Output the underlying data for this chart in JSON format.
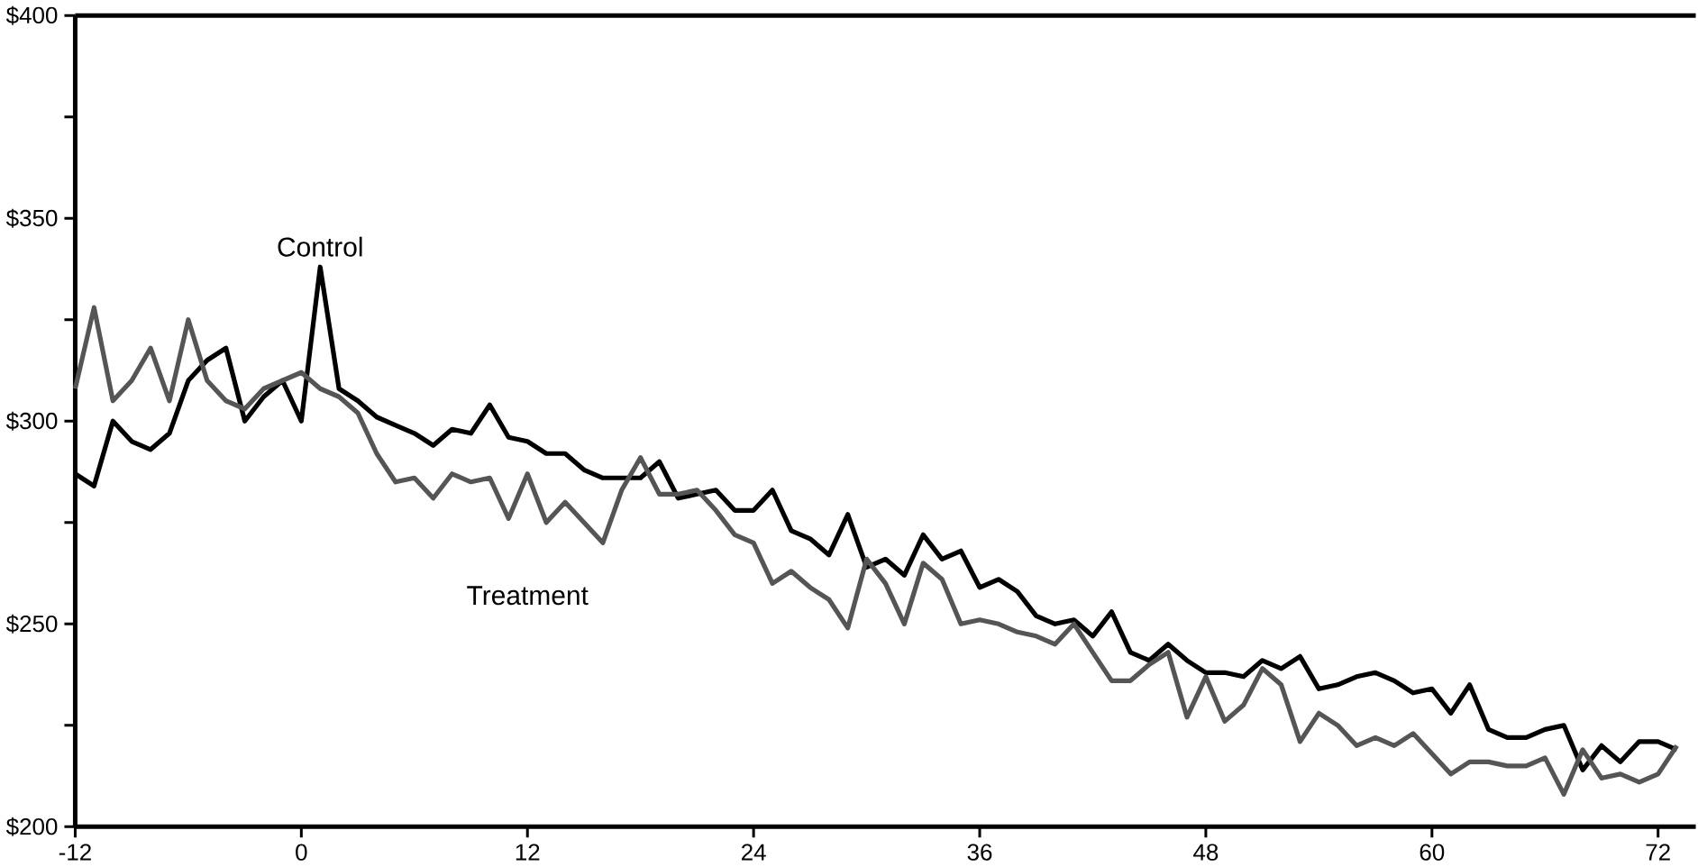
{
  "chart_data": {
    "type": "line",
    "x": [
      -12,
      -11,
      -10,
      -9,
      -8,
      -7,
      -6,
      -5,
      -4,
      -3,
      -2,
      -1,
      0,
      1,
      2,
      3,
      4,
      5,
      6,
      7,
      8,
      9,
      10,
      11,
      12,
      13,
      14,
      15,
      16,
      17,
      18,
      19,
      20,
      21,
      22,
      23,
      24,
      25,
      26,
      27,
      28,
      29,
      30,
      31,
      32,
      33,
      34,
      35,
      36,
      37,
      38,
      39,
      40,
      41,
      42,
      43,
      44,
      45,
      46,
      47,
      48,
      49,
      50,
      51,
      52,
      53,
      54,
      55,
      56,
      57,
      58,
      59,
      60,
      61,
      62,
      63,
      64,
      65,
      66,
      67,
      68,
      69,
      70,
      71,
      72,
      73
    ],
    "series": [
      {
        "name": "Control",
        "color": "#000000",
        "values": [
          287,
          284,
          300,
          295,
          293,
          297,
          310,
          315,
          318,
          300,
          306,
          310,
          300,
          338,
          308,
          305,
          301,
          299,
          297,
          294,
          298,
          297,
          304,
          296,
          295,
          292,
          292,
          288,
          286,
          286,
          286,
          290,
          281,
          282,
          283,
          278,
          278,
          283,
          273,
          271,
          267,
          277,
          264,
          266,
          262,
          272,
          266,
          268,
          259,
          261,
          258,
          252,
          250,
          251,
          247,
          253,
          243,
          241,
          245,
          241,
          238,
          238,
          237,
          241,
          239,
          242,
          234,
          235,
          237,
          238,
          236,
          233,
          234,
          228,
          235,
          224,
          222,
          222,
          224,
          225,
          214,
          220,
          216,
          221,
          221,
          219
        ]
      },
      {
        "name": "Treatment",
        "color": "#555555",
        "values": [
          308,
          328,
          305,
          310,
          318,
          305,
          325,
          310,
          305,
          303,
          308,
          310,
          312,
          308,
          306,
          302,
          292,
          285,
          286,
          281,
          287,
          285,
          286,
          276,
          287,
          275,
          280,
          275,
          270,
          283,
          291,
          282,
          282,
          283,
          278,
          272,
          270,
          260,
          263,
          259,
          256,
          249,
          266,
          260,
          250,
          265,
          261,
          250,
          251,
          250,
          248,
          247,
          245,
          250,
          243,
          236,
          236,
          240,
          243,
          227,
          237,
          226,
          230,
          239,
          235,
          221,
          228,
          225,
          220,
          222,
          220,
          223,
          218,
          213,
          216,
          216,
          215,
          215,
          217,
          208,
          219,
          212,
          213,
          211,
          213,
          220
        ]
      }
    ],
    "xlim": [
      -12,
      74
    ],
    "ylim": [
      200,
      400
    ],
    "xticks": [
      -12,
      0,
      12,
      24,
      36,
      48,
      60,
      72
    ],
    "yticks": [
      {
        "value": 200,
        "label": "$200"
      },
      {
        "value": 225,
        "label": null
      },
      {
        "value": 250,
        "label": "$250"
      },
      {
        "value": 275,
        "label": null
      },
      {
        "value": 300,
        "label": "$300"
      },
      {
        "value": 325,
        "label": null
      },
      {
        "value": 350,
        "label": "$350"
      },
      {
        "value": 375,
        "label": null
      },
      {
        "value": 400,
        "label": "$400"
      }
    ],
    "grid": false,
    "legend": false,
    "marker": "none",
    "line_style": "solid"
  }
}
